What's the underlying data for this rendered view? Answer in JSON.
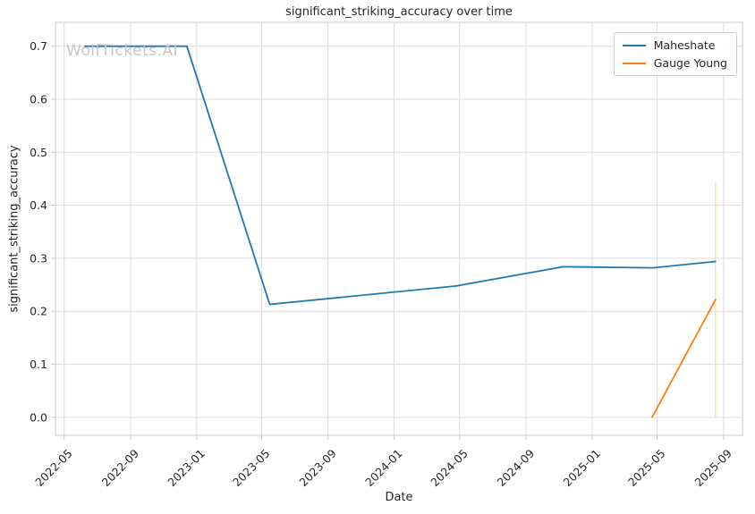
{
  "watermark": "WolfTickets.AI",
  "chart_data": {
    "type": "line",
    "title": "significant_striking_accuracy over time",
    "xlabel": "Date",
    "ylabel": "significant_striking_accuracy",
    "grid": true,
    "legend_position": "upper right",
    "x_domain": [
      "2022-04-15",
      "2025-10-06"
    ],
    "y_domain": [
      -0.034,
      0.745
    ],
    "x_ticks": [
      {
        "date": "2022-05-01",
        "label": "2022-05"
      },
      {
        "date": "2022-09-01",
        "label": "2022-09"
      },
      {
        "date": "2023-01-01",
        "label": "2023-01"
      },
      {
        "date": "2023-05-01",
        "label": "2023-05"
      },
      {
        "date": "2023-09-01",
        "label": "2023-09"
      },
      {
        "date": "2024-01-01",
        "label": "2024-01"
      },
      {
        "date": "2024-05-01",
        "label": "2024-05"
      },
      {
        "date": "2024-09-01",
        "label": "2024-09"
      },
      {
        "date": "2025-01-01",
        "label": "2025-01"
      },
      {
        "date": "2025-05-01",
        "label": "2025-05"
      },
      {
        "date": "2025-09-01",
        "label": "2025-09"
      }
    ],
    "y_ticks": [
      {
        "value": 0.0,
        "label": "0.0"
      },
      {
        "value": 0.1,
        "label": "0.1"
      },
      {
        "value": 0.2,
        "label": "0.2"
      },
      {
        "value": 0.3,
        "label": "0.3"
      },
      {
        "value": 0.4,
        "label": "0.4"
      },
      {
        "value": 0.5,
        "label": "0.5"
      },
      {
        "value": 0.6,
        "label": "0.6"
      },
      {
        "value": 0.7,
        "label": "0.7"
      }
    ],
    "series": [
      {
        "name": "Maheshate",
        "color": "#1f77b4",
        "points": [
          {
            "date": "2022-06-08",
            "value": 0.7
          },
          {
            "date": "2022-12-14",
            "value": 0.7
          },
          {
            "date": "2023-05-16",
            "value": 0.213
          },
          {
            "date": "2024-04-26",
            "value": 0.248
          },
          {
            "date": "2024-11-09",
            "value": 0.284
          },
          {
            "date": "2025-04-24",
            "value": 0.282
          },
          {
            "date": "2025-08-17",
            "value": 0.294
          }
        ]
      },
      {
        "name": "Gauge Young",
        "color": "#ff7f0e",
        "points": [
          {
            "date": "2025-04-22",
            "value": 0.0
          },
          {
            "date": "2025-08-17",
            "value": 0.222
          }
        ]
      }
    ],
    "annotations": [
      {
        "type": "vertical-line-segment",
        "date": "2025-08-17",
        "y_from": 0.0,
        "y_to": 0.444,
        "color": "#ffd8b0"
      }
    ]
  }
}
